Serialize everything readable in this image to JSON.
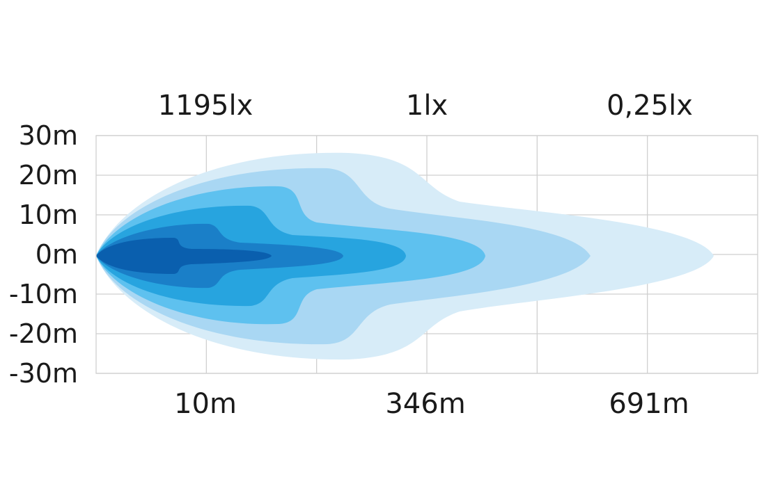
{
  "chart_data": {
    "type": "area",
    "y_ticks": [
      "30m",
      "20m",
      "10m",
      "0m",
      "-10m",
      "-20m",
      "-30m"
    ],
    "ylim": [
      -30,
      30
    ],
    "top_labels": [
      "1195lx",
      "1lx",
      "0,25lx"
    ],
    "bottom_labels": [
      "10m",
      "346m",
      "691m"
    ],
    "grid": true,
    "colors": [
      "#d7ecf8",
      "#a9d7f3",
      "#5ec1ef",
      "#27a4df",
      "#1a7fc8",
      "#0a5fae"
    ]
  }
}
